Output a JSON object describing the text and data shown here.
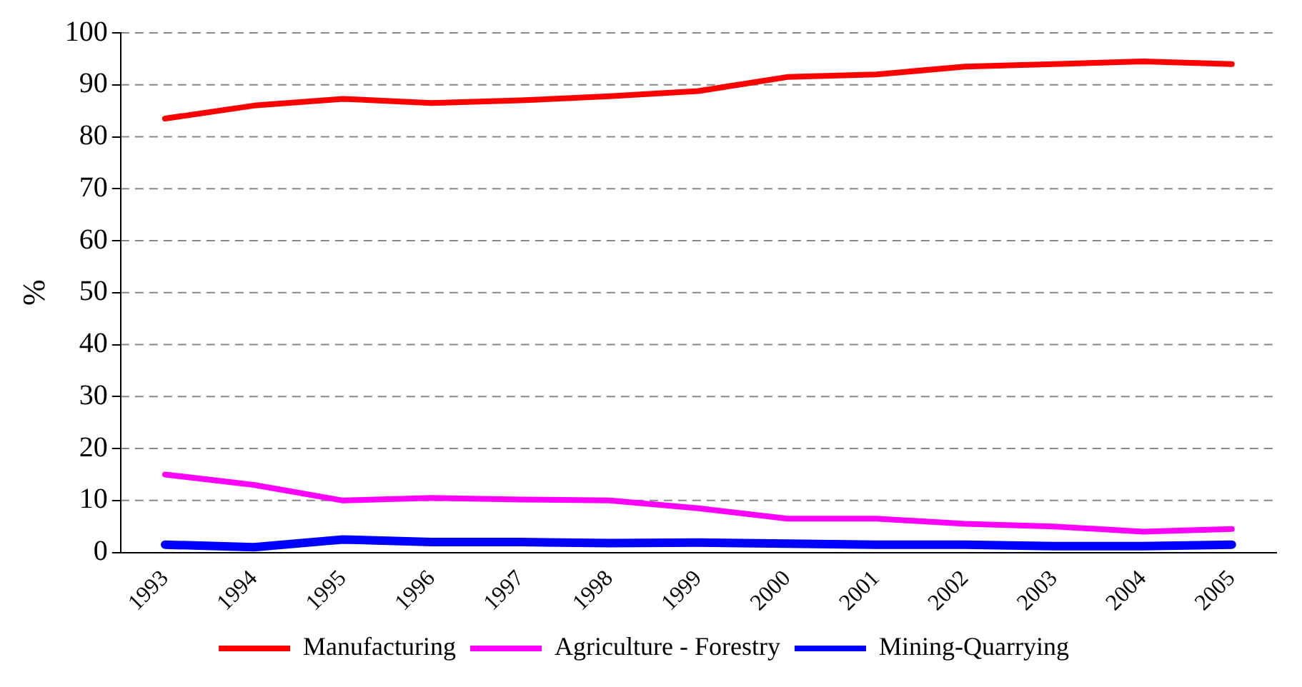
{
  "chart_data": {
    "type": "line",
    "ylabel": "%",
    "categories": [
      "1993",
      "1994",
      "1995",
      "1996",
      "1997",
      "1998",
      "1999",
      "2000",
      "2001",
      "2002",
      "2003",
      "2004",
      "2005"
    ],
    "series": [
      {
        "name": "Manufacturing",
        "color": "#ff0000",
        "values": [
          83.5,
          86,
          87.3,
          86.5,
          87,
          87.8,
          88.8,
          91.5,
          92,
          93.5,
          94,
          94.5,
          94
        ]
      },
      {
        "name": "Agriculture - Forestry",
        "color": "#ff00ff",
        "values": [
          15,
          13,
          10,
          10.5,
          10.2,
          10,
          8.5,
          6.5,
          6.5,
          5.5,
          5,
          4,
          4.5
        ]
      },
      {
        "name": "Mining-Quarrying",
        "color": "#0000ff",
        "values": [
          1.5,
          1,
          2.5,
          2,
          2,
          1.8,
          1.9,
          1.7,
          1.5,
          1.5,
          1.2,
          1.2,
          1.5
        ]
      }
    ],
    "ylim": [
      0,
      100
    ],
    "yticks": [
      0,
      10,
      20,
      30,
      40,
      50,
      60,
      70,
      80,
      90,
      100
    ],
    "grid": "y",
    "legend": "bottom",
    "marker": "none",
    "line_style": "solid"
  }
}
